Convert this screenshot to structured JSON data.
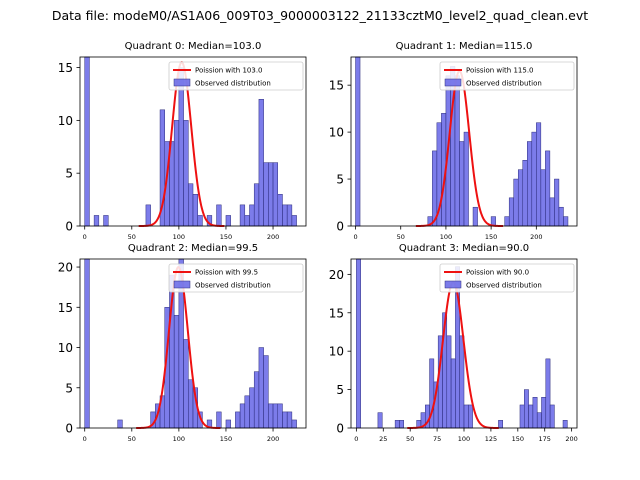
{
  "figure_title": "Data file: modeM0/AS1A06_009T03_9000003122_21133cztM0_level2_quad_clean.evt",
  "colors": {
    "bars": "#6565e6",
    "bar_edge": "#2b2b7a",
    "curve": "#ee1111"
  },
  "chart_data": [
    {
      "type": "bar",
      "title": "Quadrant 0: Median=103.0",
      "xlim": [
        -5,
        235
      ],
      "ylim": [
        0,
        16
      ],
      "xticks": [
        0,
        50,
        100,
        150,
        200
      ],
      "yticks": [
        0,
        5,
        10,
        15
      ],
      "bin_width": 5,
      "bins": [
        [
          0,
          16
        ],
        [
          10,
          1
        ],
        [
          20,
          1
        ],
        [
          65,
          2
        ],
        [
          80,
          11
        ],
        [
          85,
          8
        ],
        [
          90,
          8
        ],
        [
          95,
          10
        ],
        [
          100,
          15
        ],
        [
          105,
          10
        ],
        [
          110,
          4
        ],
        [
          115,
          3
        ],
        [
          120,
          1
        ],
        [
          130,
          1
        ],
        [
          140,
          2
        ],
        [
          150,
          1
        ],
        [
          165,
          2
        ],
        [
          170,
          1
        ],
        [
          175,
          2
        ],
        [
          180,
          4
        ],
        [
          185,
          12
        ],
        [
          190,
          6
        ],
        [
          195,
          6
        ],
        [
          200,
          6
        ],
        [
          205,
          3
        ],
        [
          210,
          2
        ],
        [
          215,
          2
        ],
        [
          220,
          1
        ]
      ],
      "poisson_mean": 103.0,
      "poisson_peak": 15.5,
      "legend": [
        "Poission with 103.0",
        "Observed distribution"
      ]
    },
    {
      "type": "bar",
      "title": "Quadrant 1: Median=115.0",
      "xlim": [
        -5,
        245
      ],
      "ylim": [
        0,
        18
      ],
      "xticks": [
        0,
        50,
        100,
        150,
        200
      ],
      "yticks": [
        0,
        5,
        10,
        15
      ],
      "bin_width": 5,
      "bins": [
        [
          0,
          18
        ],
        [
          80,
          1
        ],
        [
          85,
          8
        ],
        [
          90,
          11
        ],
        [
          95,
          12
        ],
        [
          100,
          16
        ],
        [
          105,
          17
        ],
        [
          110,
          16
        ],
        [
          115,
          9
        ],
        [
          120,
          10
        ],
        [
          130,
          2
        ],
        [
          150,
          1
        ],
        [
          165,
          1
        ],
        [
          170,
          3
        ],
        [
          175,
          5
        ],
        [
          180,
          6
        ],
        [
          185,
          7
        ],
        [
          190,
          9
        ],
        [
          195,
          10
        ],
        [
          200,
          11
        ],
        [
          205,
          6
        ],
        [
          210,
          8
        ],
        [
          215,
          3
        ],
        [
          220,
          5
        ],
        [
          225,
          2
        ],
        [
          230,
          1
        ]
      ],
      "poisson_mean": 115.0,
      "poisson_peak": 16.5,
      "legend": [
        "Poission with 115.0",
        "Observed distribution"
      ]
    },
    {
      "type": "bar",
      "title": "Quadrant 2: Median=99.5",
      "xlim": [
        -5,
        235
      ],
      "ylim": [
        0,
        21
      ],
      "xticks": [
        0,
        50,
        100,
        150,
        200
      ],
      "yticks": [
        0,
        5,
        10,
        15,
        20
      ],
      "bin_width": 5,
      "bins": [
        [
          0,
          21
        ],
        [
          35,
          1
        ],
        [
          70,
          2
        ],
        [
          75,
          3
        ],
        [
          80,
          4
        ],
        [
          85,
          15
        ],
        [
          90,
          19
        ],
        [
          95,
          14
        ],
        [
          100,
          21
        ],
        [
          105,
          11
        ],
        [
          110,
          6
        ],
        [
          115,
          5
        ],
        [
          120,
          2
        ],
        [
          130,
          1
        ],
        [
          140,
          2
        ],
        [
          150,
          1
        ],
        [
          160,
          2
        ],
        [
          165,
          3
        ],
        [
          170,
          4
        ],
        [
          175,
          5
        ],
        [
          180,
          7
        ],
        [
          185,
          10
        ],
        [
          190,
          9
        ],
        [
          195,
          3
        ],
        [
          200,
          3
        ],
        [
          205,
          3
        ],
        [
          210,
          2
        ],
        [
          215,
          2
        ],
        [
          220,
          1
        ]
      ],
      "poisson_mean": 99.5,
      "poisson_peak": 20.0,
      "legend": [
        "Poission with 99.5",
        "Observed distribution"
      ]
    },
    {
      "type": "bar",
      "title": "Quadrant 3: Median=90.0",
      "xlim": [
        -5,
        205
      ],
      "ylim": [
        0,
        22
      ],
      "xticks": [
        0,
        25,
        50,
        75,
        100,
        125,
        150,
        175,
        200
      ],
      "yticks": [
        0,
        5,
        10,
        15,
        20
      ],
      "bin_width": 4,
      "bins": [
        [
          0,
          22
        ],
        [
          20,
          2
        ],
        [
          36,
          1
        ],
        [
          40,
          1
        ],
        [
          56,
          1
        ],
        [
          60,
          2
        ],
        [
          64,
          3
        ],
        [
          68,
          9
        ],
        [
          72,
          6
        ],
        [
          76,
          12
        ],
        [
          80,
          15
        ],
        [
          84,
          12
        ],
        [
          88,
          9
        ],
        [
          92,
          21
        ],
        [
          96,
          12
        ],
        [
          100,
          3
        ],
        [
          104,
          3
        ],
        [
          132,
          1
        ],
        [
          152,
          3
        ],
        [
          156,
          5
        ],
        [
          160,
          3
        ],
        [
          164,
          4
        ],
        [
          168,
          2
        ],
        [
          172,
          4
        ],
        [
          176,
          9
        ],
        [
          180,
          3
        ],
        [
          192,
          1
        ]
      ],
      "poisson_mean": 90.0,
      "poisson_peak": 19.0,
      "legend": [
        "Poission with 90.0",
        "Observed distribution"
      ]
    }
  ]
}
